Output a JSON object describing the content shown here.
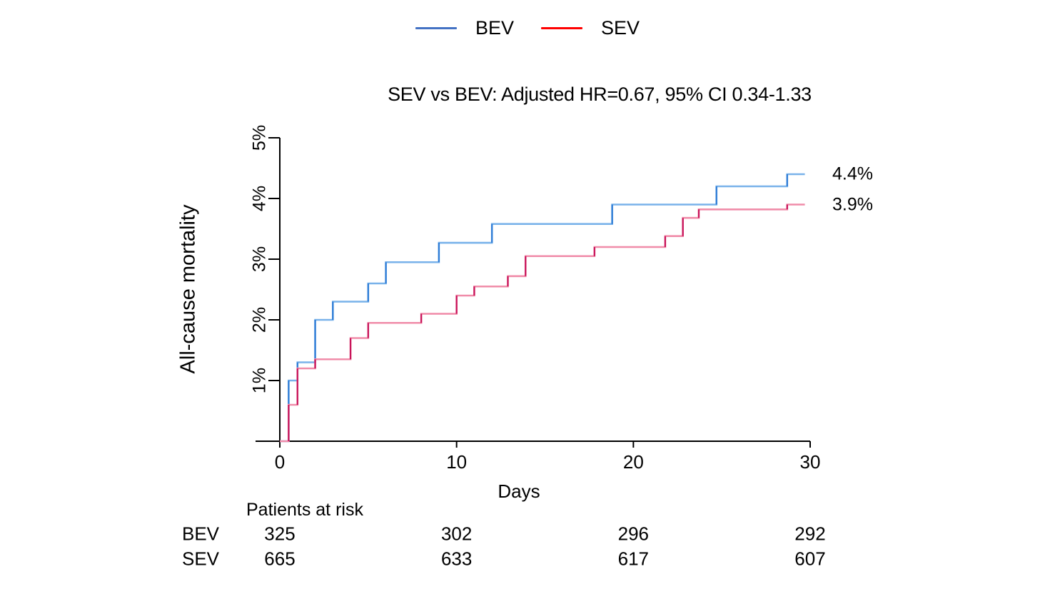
{
  "chart_data": {
    "type": "line",
    "subtype": "step-survival",
    "title": "SEV vs BEV: Adjusted HR=0.67, 95% CI 0.34-1.33",
    "xlabel": "Days",
    "ylabel": "All-cause mortality",
    "xlim": [
      0,
      30
    ],
    "ylim": [
      0,
      5
    ],
    "xticks": [
      0,
      10,
      20,
      30
    ],
    "yticks": [
      {
        "value": 1,
        "label": "1%"
      },
      {
        "value": 2,
        "label": "2%"
      },
      {
        "value": 3,
        "label": "3%"
      },
      {
        "value": 4,
        "label": "4%"
      },
      {
        "value": 5,
        "label": "5%"
      }
    ],
    "grid": false,
    "legend_position": "top-center",
    "series": [
      {
        "name": "BEV",
        "legend_color": "#4472C4",
        "line_color": "#79B2EA",
        "edge_color": "#2E7CD6",
        "points": [
          [
            0,
            0
          ],
          [
            0.5,
            1.0
          ],
          [
            1,
            1.3
          ],
          [
            2,
            2.0
          ],
          [
            3,
            2.3
          ],
          [
            5,
            2.6
          ],
          [
            6,
            2.95
          ],
          [
            9,
            3.27
          ],
          [
            12,
            3.58
          ],
          [
            18.8,
            3.9
          ],
          [
            24.7,
            4.2
          ],
          [
            28.7,
            4.4
          ]
        ],
        "end_day": 29.7,
        "final_label": "4.4%"
      },
      {
        "name": "SEV",
        "legend_color": "#FF0000",
        "line_color": "#F08CA9",
        "edge_color": "#C8145A",
        "points": [
          [
            0,
            0
          ],
          [
            0.5,
            0.6
          ],
          [
            1,
            1.2
          ],
          [
            2,
            1.35
          ],
          [
            4,
            1.7
          ],
          [
            5,
            1.95
          ],
          [
            8,
            2.1
          ],
          [
            10,
            2.4
          ],
          [
            11,
            2.55
          ],
          [
            12.9,
            2.72
          ],
          [
            13.9,
            3.05
          ],
          [
            17.8,
            3.2
          ],
          [
            21.8,
            3.38
          ],
          [
            22.8,
            3.68
          ],
          [
            23.7,
            3.82
          ],
          [
            28.7,
            3.9
          ]
        ],
        "end_day": 29.7,
        "final_label": "3.9%"
      }
    ],
    "risk_table": {
      "title": "Patients at risk",
      "time_points": [
        0,
        10,
        20,
        30
      ],
      "rows": [
        {
          "name": "BEV",
          "values": [
            "325",
            "302",
            "296",
            "292"
          ]
        },
        {
          "name": "SEV",
          "values": [
            "665",
            "633",
            "617",
            "607"
          ]
        }
      ]
    }
  }
}
